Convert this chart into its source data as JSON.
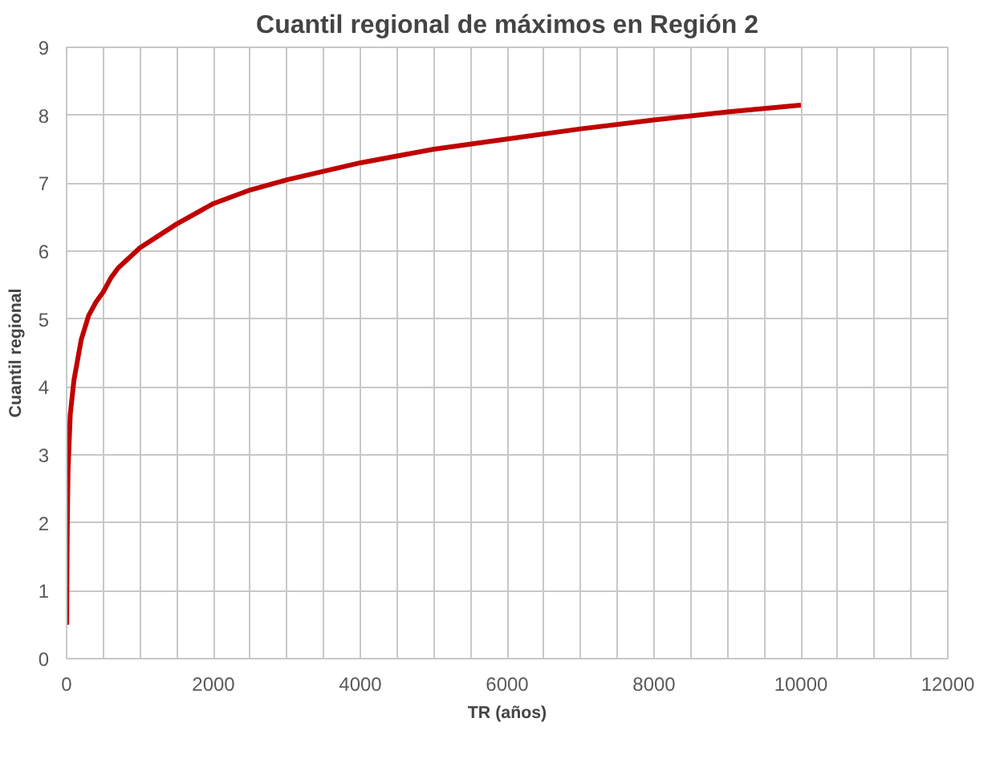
{
  "chart_data": {
    "type": "line",
    "title": "Cuantil regional de máximos en Región 2",
    "xlabel": "TR (años)",
    "ylabel": "Cuantil regional",
    "x": [
      2,
      5,
      10,
      20,
      50,
      100,
      200,
      300,
      400,
      500,
      600,
      700,
      800,
      1000,
      1500,
      2000,
      2500,
      3000,
      4000,
      5000,
      6000,
      7000,
      8000,
      9000,
      10000
    ],
    "series": [
      {
        "color": "#c00000",
        "values": [
          0.5,
          1.3,
          2.0,
          2.8,
          3.6,
          4.1,
          4.7,
          5.05,
          5.25,
          5.4,
          5.6,
          5.75,
          5.85,
          6.05,
          6.4,
          6.7,
          6.9,
          7.05,
          7.3,
          7.5,
          7.65,
          7.8,
          7.93,
          8.05,
          8.15
        ]
      }
    ],
    "xlim": [
      0,
      12000
    ],
    "ylim": [
      0,
      9
    ],
    "xticks": [
      0,
      {
        "value": 500,
        "label": null
      },
      2000,
      {
        "value": 1000,
        "label": null
      },
      {
        "value": 1500,
        "label": null
      },
      {
        "value": 2500,
        "label": null
      },
      {
        "value": 3000,
        "label": null
      },
      {
        "value": 3500,
        "label": null
      },
      4000,
      {
        "value": 4500,
        "label": null
      },
      {
        "value": 5000,
        "label": null
      },
      {
        "value": 5500,
        "label": null
      },
      6000,
      {
        "value": 6500,
        "label": null
      },
      {
        "value": 7000,
        "label": null
      },
      {
        "value": 7500,
        "label": null
      },
      8000,
      {
        "value": 8500,
        "label": null
      },
      {
        "value": 9000,
        "label": null
      },
      {
        "value": 9500,
        "label": null
      },
      10000,
      {
        "value": 10500,
        "label": null
      },
      {
        "value": 11000,
        "label": null
      },
      {
        "value": 11500,
        "label": null
      },
      12000
    ],
    "yticks": [
      0,
      1,
      2,
      3,
      4,
      5,
      6,
      7,
      8,
      9
    ],
    "grid": true,
    "marker": "none",
    "line_style": "solid"
  }
}
